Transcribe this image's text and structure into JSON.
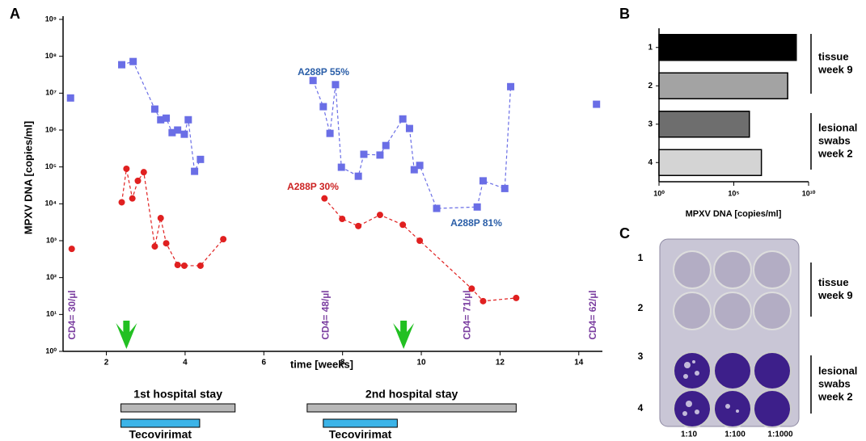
{
  "chart_data": [
    {
      "type": "line",
      "panel_label": "A",
      "y_label": "MPXV DNA [copies/ml]",
      "x_label": "time [weeks]",
      "xlim": [
        0.9,
        14.6
      ],
      "xticks": [
        2,
        4,
        6,
        8,
        10,
        12,
        14
      ],
      "yscale": "log",
      "ylim": [
        1,
        1000000000
      ],
      "yticks": [
        {
          "value": 1,
          "label": "10⁰"
        },
        {
          "value": 10,
          "label": "10¹"
        },
        {
          "value": 100,
          "label": "10²"
        },
        {
          "value": 1000,
          "label": "10³"
        },
        {
          "value": 10000,
          "label": "10⁴"
        },
        {
          "value": 100000,
          "label": "10⁵"
        },
        {
          "value": 1000000,
          "label": "10⁶"
        },
        {
          "value": 10000000,
          "label": "10⁷"
        },
        {
          "value": 100000000,
          "label": "10⁸"
        },
        {
          "value": 1000000000,
          "label": "10⁹"
        }
      ],
      "series": [
        {
          "color": "#6a6ee6",
          "marker": "square",
          "x": [
            1.09,
            null,
            2.39,
            2.68,
            3.23,
            3.38,
            3.52,
            3.67,
            3.81,
            3.98,
            4.08,
            4.24,
            4.39,
            null,
            7.25,
            7.51,
            7.68,
            7.82,
            7.97,
            8.4,
            8.54,
            8.95,
            9.1,
            9.53,
            9.7,
            9.82,
            9.96,
            10.39,
            11.42,
            11.57,
            12.12,
            12.27,
            null,
            14.45
          ],
          "values": [
            7400000,
            null,
            59000000,
            72000000,
            3700000,
            1900000,
            2100000,
            850000,
            1000000,
            770000,
            1900000,
            76000,
            160000,
            null,
            22000000,
            4300000,
            810000,
            17000000,
            98000,
            56000,
            220000,
            210000,
            380000,
            2000000,
            1100000,
            84000,
            110000,
            7500,
            8200,
            42000,
            26000,
            15000000,
            null,
            5000000
          ]
        },
        {
          "color": "#e02020",
          "marker": "circle",
          "x": [
            1.12,
            null,
            2.39,
            2.51,
            2.66,
            2.8,
            2.95,
            3.23,
            3.38,
            3.52,
            3.81,
            3.98,
            4.39,
            4.97,
            null,
            7.54,
            7.99,
            8.4,
            8.95,
            9.53,
            9.96,
            11.28,
            11.57,
            12.41
          ],
          "values": [
            600,
            null,
            11000,
            89000,
            14000,
            42000,
            72000,
            700,
            4100,
            850,
            220,
            210,
            210,
            1100,
            null,
            14000,
            3900,
            2500,
            5000,
            2700,
            1000,
            50,
            23,
            28
          ]
        }
      ],
      "annotations": [
        {
          "text": "A288P 55%",
          "color": "#2a5ea8"
        },
        {
          "text": "A288P 30%",
          "color": "#cc2222"
        },
        {
          "text": "A288P 81%",
          "color": "#2a5ea8"
        }
      ],
      "cd4_labels": [
        {
          "text": "CD4= 30/µl",
          "x": 1.14
        },
        {
          "text": "CD4= 48/µl",
          "x": 7.58
        },
        {
          "text": "CD4= 71/µl",
          "x": 11.18
        },
        {
          "text": "CD4= 62/µl",
          "x": 14.37
        }
      ],
      "arrows": [
        2.51,
        9.55
      ],
      "stays": [
        {
          "label": "1st hospital stay",
          "start": 2.37,
          "end": 5.27,
          "treatment": "Tecovirimat",
          "treatment_start": 2.37,
          "treatment_end": 4.37
        },
        {
          "label": "2nd hospital stay",
          "start": 7.1,
          "end": 12.41,
          "treatment": "Tecovirimat",
          "treatment_start": 7.51,
          "treatment_end": 9.39
        }
      ]
    },
    {
      "type": "hbar",
      "panel_label": "B",
      "x_label": "MPXV DNA [copies/ml]",
      "xscale": "log",
      "xlim": [
        1,
        10000000000
      ],
      "xticks": [
        {
          "value": 1,
          "label": "10⁰"
        },
        {
          "value": 100000,
          "label": "10⁵"
        },
        {
          "value": 10000000000,
          "label": "10¹⁰"
        }
      ],
      "categories": [
        "1",
        "2",
        "3",
        "4"
      ],
      "values": [
        1500000000,
        400000000,
        1100000,
        7000000
      ],
      "colors": [
        "#000000",
        "#a3a3a3",
        "#6e6e6e",
        "#d4d4d4"
      ],
      "groups": [
        [
          "tissue",
          "week 9"
        ],
        [
          "lesional",
          "swabs",
          "week 2"
        ]
      ]
    }
  ],
  "panel_c": {
    "panel_label": "C",
    "rows": [
      "1",
      "2",
      "3",
      "4"
    ],
    "columns": [
      "1:10",
      "1:100",
      "1:1000"
    ],
    "groups": [
      [
        "tissue",
        "week 9"
      ],
      [
        "lesional",
        "swabs",
        "week 2"
      ]
    ]
  }
}
